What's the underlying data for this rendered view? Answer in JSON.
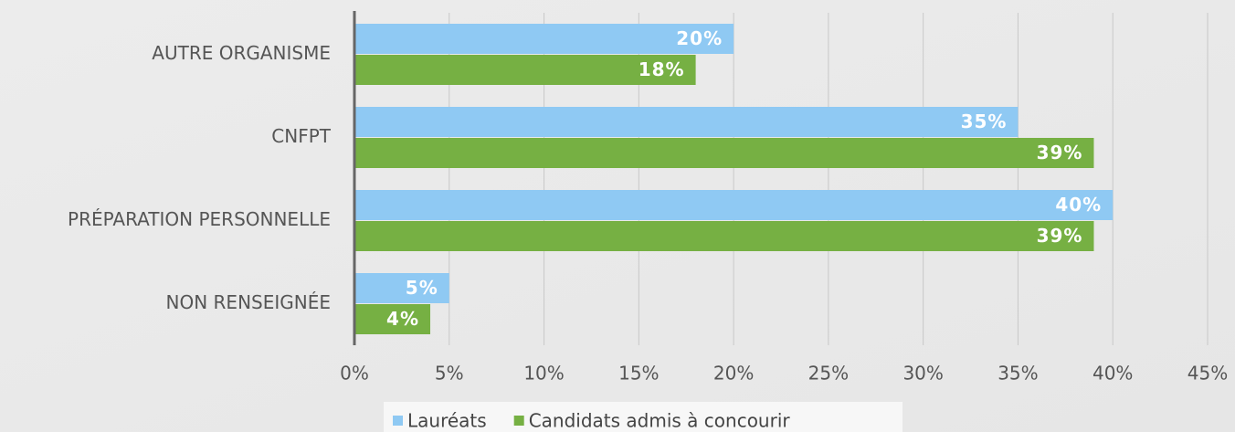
{
  "chart_data": {
    "type": "hbar",
    "categories": [
      "AUTRE ORGANISME",
      "CNFPT",
      "PRÉPARATION PERSONNELLE",
      "NON RENSEIGNÉE"
    ],
    "series": [
      {
        "name": "Lauréats",
        "color": "#8fc9f3",
        "values": [
          20,
          35,
          40,
          5
        ],
        "value_labels": [
          "20%",
          "35%",
          "40%",
          "5%"
        ]
      },
      {
        "name": "Candidats admis à concourir",
        "color": "#76b043",
        "values": [
          18,
          39,
          39,
          4
        ],
        "value_labels": [
          "18%",
          "39%",
          "39%",
          "4%"
        ]
      }
    ],
    "xlim": [
      0,
      45
    ],
    "xticks": [
      {
        "value": 0,
        "label": "0%"
      },
      {
        "value": 5,
        "label": "5%"
      },
      {
        "value": 10,
        "label": "10%"
      },
      {
        "value": 15,
        "label": "15%"
      },
      {
        "value": 20,
        "label": "20%"
      },
      {
        "value": 25,
        "label": "25%"
      },
      {
        "value": 30,
        "label": "30%"
      },
      {
        "value": 35,
        "label": "35%"
      },
      {
        "value": 40,
        "label": "40%"
      },
      {
        "value": 45,
        "label": "45%"
      }
    ],
    "grid": true,
    "legend": "bottom"
  }
}
